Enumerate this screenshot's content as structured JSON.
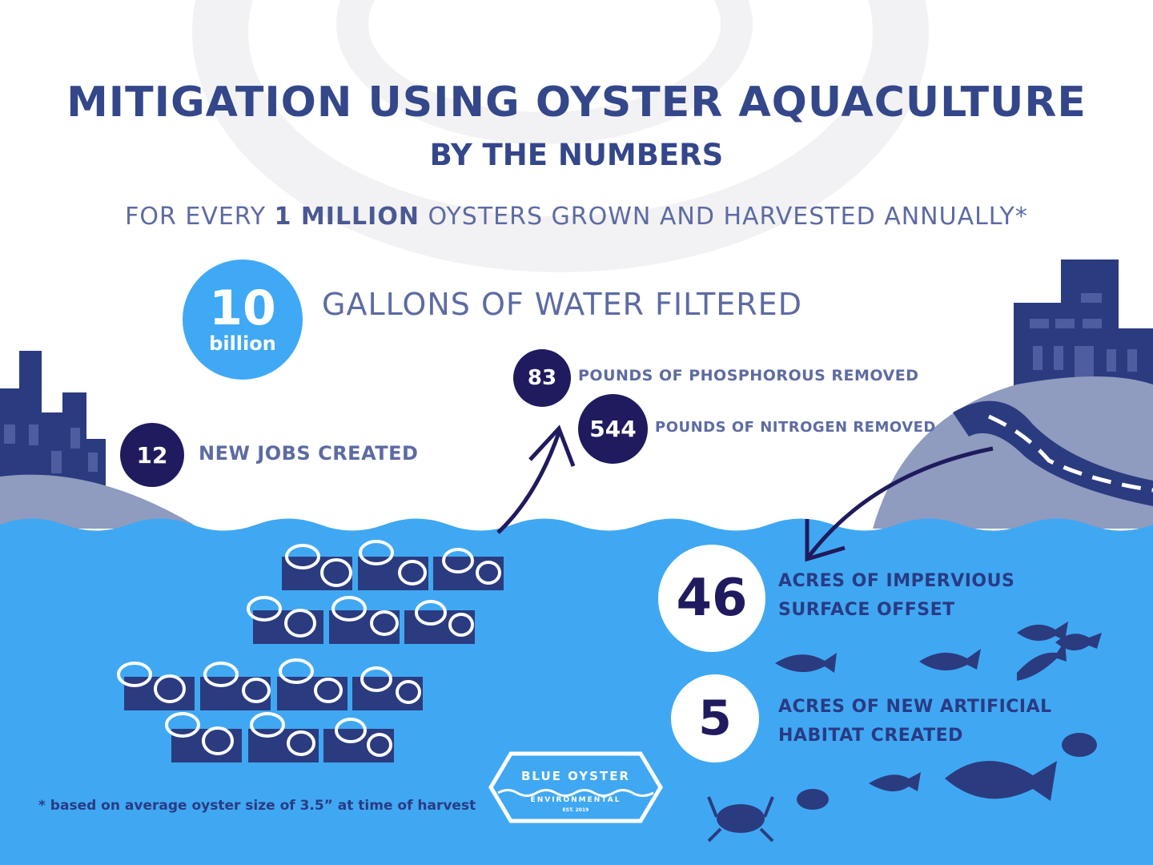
{
  "header": {
    "title": "MITIGATION USING OYSTER AQUACULTURE",
    "subtitle": "BY THE NUMBERS",
    "tagline_pre": "FOR EVERY ",
    "tagline_bold": "1 MILLION",
    "tagline_post": " OYSTERS GROWN AND HARVESTED ANNUALLY*"
  },
  "stats": [
    {
      "value": "10",
      "unit": "billion",
      "label": "GALLONS OF WATER FILTERED"
    },
    {
      "value": "12",
      "label": "NEW JOBS CREATED"
    },
    {
      "value": "83",
      "label": "POUNDS OF PHOSPHOROUS REMOVED"
    },
    {
      "value": "544",
      "label": "POUNDS OF NITROGEN REMOVED"
    },
    {
      "value": "46",
      "label_line1": "ACRES OF IMPERVIOUS",
      "label_line2": "SURFACE OFFSET"
    },
    {
      "value": "5",
      "label_line1": "ACRES OF NEW ARTIFICIAL",
      "label_line2": "HABITAT CREATED"
    }
  ],
  "footnote": "* based on average oyster size of 3.5” at time of harvest",
  "logo": {
    "name": "BLUE OYSTER",
    "sub": "ENVIRONMENTAL",
    "est": "EST. 2019"
  },
  "colors": {
    "water": "#40a8f2",
    "navy": "#1f1b5e",
    "title": "#34478a",
    "hill": "#8f9bbf",
    "building": "#2b3b80",
    "accent_circle": "#3fa9f5"
  }
}
